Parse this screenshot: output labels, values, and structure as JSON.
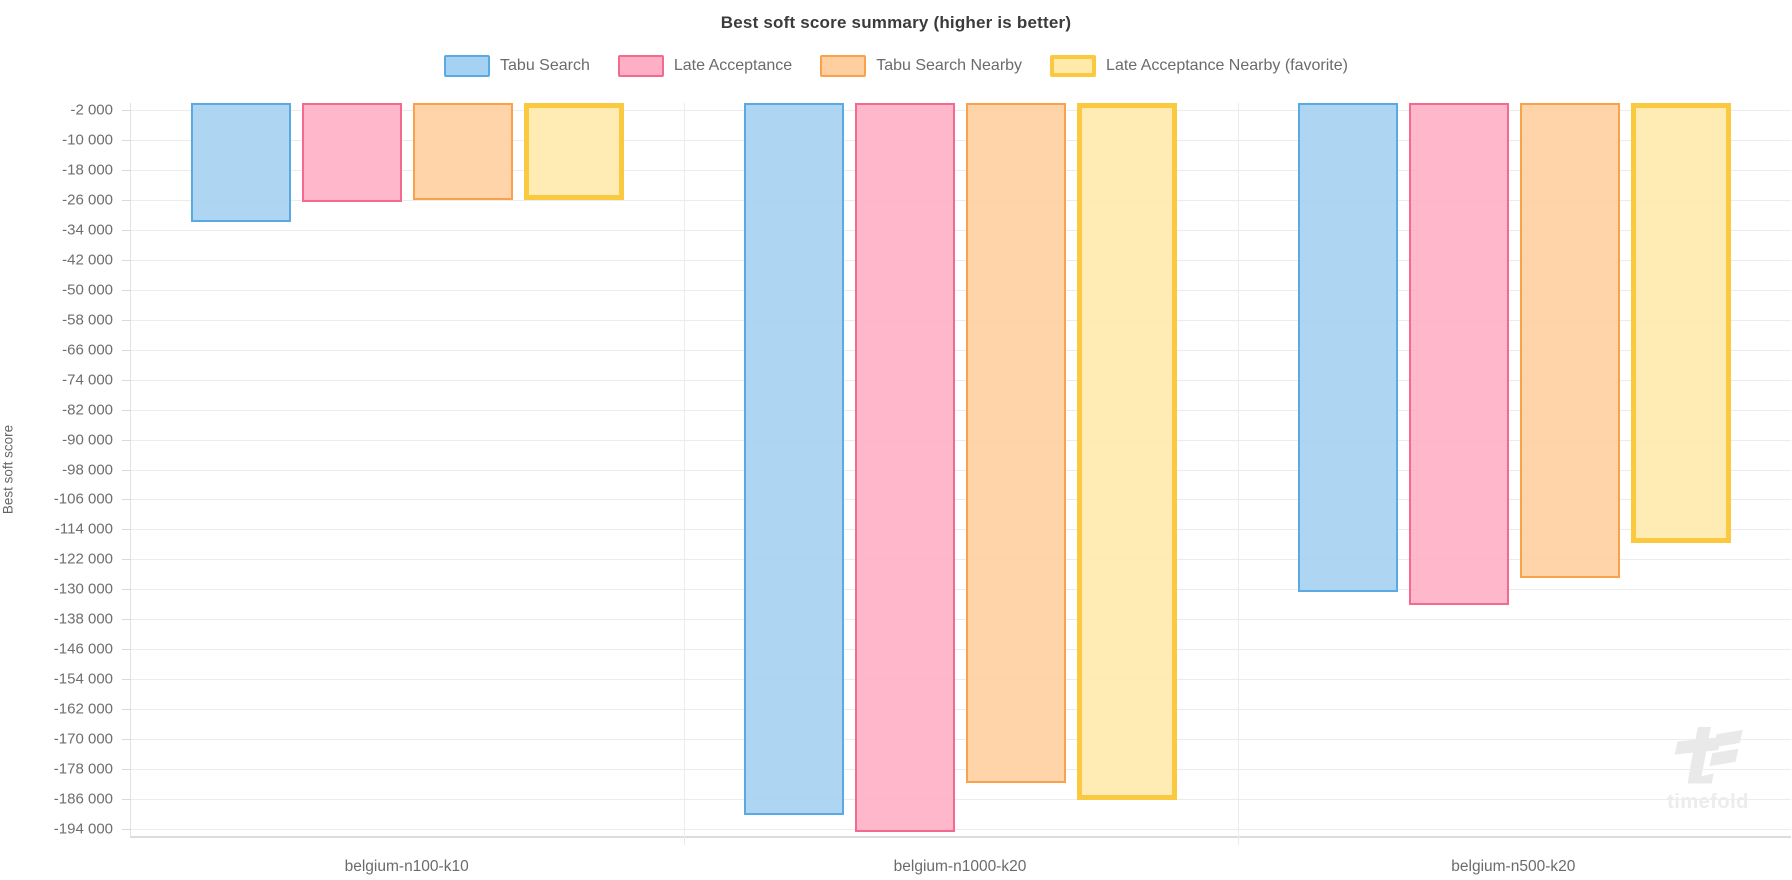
{
  "title": "Best soft score summary (higher is better)",
  "watermark": {
    "text": "timefold"
  },
  "chart_data": {
    "type": "bar",
    "title": "Best soft score summary (higher is better)",
    "xlabel": "",
    "ylabel": "Best soft score",
    "categories": [
      "belgium-n100-k10",
      "belgium-n1000-k20",
      "belgium-n500-k20"
    ],
    "series": [
      {
        "name": "Tabu Search",
        "values": [
          -31900,
          -190400,
          -130800
        ],
        "fill": "#A5D2F2",
        "stroke": "#59A9E2",
        "stroke_width": 2,
        "favorite": false
      },
      {
        "name": "Late Acceptance",
        "values": [
          -26400,
          -195000,
          -134300
        ],
        "fill": "#FFAFC5",
        "stroke": "#F46A8E",
        "stroke_width": 2,
        "favorite": false
      },
      {
        "name": "Tabu Search Nearby",
        "values": [
          -25900,
          -181700,
          -126900
        ],
        "fill": "#FFCF9F",
        "stroke": "#F9A24B",
        "stroke_width": 2,
        "favorite": false
      },
      {
        "name": "Late Acceptance Nearby (favorite)",
        "values": [
          -26000,
          -186300,
          -117600
        ],
        "fill": "#FFEAAC",
        "stroke": "#FBC93F",
        "stroke_width": 5,
        "favorite": true
      }
    ],
    "ylim": [
      -196000,
      0
    ],
    "yticks": [
      -2000,
      -10000,
      -18000,
      -26000,
      -34000,
      -42000,
      -50000,
      -58000,
      -66000,
      -74000,
      -82000,
      -90000,
      -98000,
      -106000,
      -114000,
      -122000,
      -130000,
      -138000,
      -146000,
      -154000,
      -162000,
      -170000,
      -178000,
      -186000,
      -194000
    ],
    "grid": true,
    "legend_position": "top",
    "bar_anchor": "top",
    "tick_label_format": "space-thousands"
  }
}
